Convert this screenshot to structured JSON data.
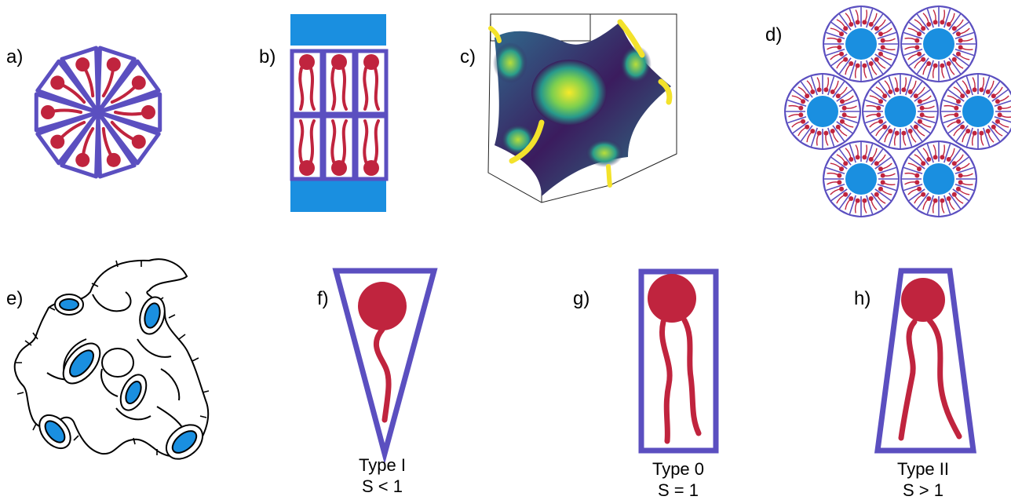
{
  "panels": {
    "a": {
      "label": "a)"
    },
    "b": {
      "label": "b)"
    },
    "c": {
      "label": "c)"
    },
    "d": {
      "label": "d)"
    },
    "e": {
      "label": "e)"
    },
    "f": {
      "label": "f)",
      "type": "Type I",
      "param": "S < 1"
    },
    "g": {
      "label": "g)",
      "type": "Type 0",
      "param": "S = 1"
    },
    "h": {
      "label": "h)",
      "type": "Type II",
      "param": "S > 1"
    }
  },
  "colors": {
    "frame": "#5b4fc0",
    "lipid": "#c0243e",
    "water": "#1a8fe0",
    "surface_high": "#f2e12a",
    "surface_mid": "#2aa58a",
    "surface_low": "#3b1b5a"
  }
}
